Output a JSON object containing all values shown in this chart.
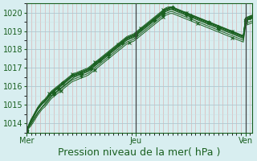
{
  "title": "",
  "xlabel": "Pression niveau de la mer( hPa )",
  "ylabel": "",
  "bg_color": "#d8eef0",
  "grid_color_major": "#b0c8d0",
  "grid_color_minor": "#c8dde2",
  "line_color": "#1a6020",
  "marker_color": "#1a6020",
  "vline_color": "#555555",
  "ylim": [
    1013.5,
    1020.5
  ],
  "yticks": [
    1014,
    1015,
    1016,
    1017,
    1018,
    1019,
    1020
  ],
  "xlabel_fontsize": 9,
  "ytick_fontsize": 7,
  "xtick_fontsize": 7,
  "day_labels": [
    "Mer",
    "Jeu",
    "Ven"
  ],
  "day_positions": [
    0,
    48,
    96
  ],
  "total_points": 100,
  "series": [
    {
      "y": [
        1013.6,
        1013.8,
        1014.0,
        1014.2,
        1014.4,
        1014.6,
        1014.75,
        1014.9,
        1015.05,
        1015.2,
        1015.35,
        1015.5,
        1015.6,
        1015.7,
        1015.8,
        1015.9,
        1016.0,
        1016.1,
        1016.2,
        1016.3,
        1016.4,
        1016.5,
        1016.55,
        1016.6,
        1016.65,
        1016.7,
        1016.75,
        1016.8,
        1016.9,
        1017.0,
        1017.1,
        1017.2,
        1017.3,
        1017.4,
        1017.5,
        1017.6,
        1017.7,
        1017.8,
        1017.9,
        1018.0,
        1018.1,
        1018.2,
        1018.3,
        1018.4,
        1018.5,
        1018.55,
        1018.6,
        1018.65,
        1018.75,
        1018.85,
        1018.95,
        1019.05,
        1019.15,
        1019.25,
        1019.35,
        1019.45,
        1019.55,
        1019.65,
        1019.75,
        1019.85,
        1019.95,
        1020.05,
        1020.1,
        1020.15,
        1020.15,
        1020.1,
        1020.05,
        1020.0,
        1019.95,
        1019.9,
        1019.85,
        1019.8,
        1019.75,
        1019.7,
        1019.65,
        1019.6,
        1019.55,
        1019.5,
        1019.45,
        1019.4,
        1019.35,
        1019.3,
        1019.25,
        1019.2,
        1019.15,
        1019.1,
        1019.05,
        1019.0,
        1018.95,
        1018.9,
        1018.85,
        1018.8,
        1018.75,
        1018.7,
        1018.65,
        1018.6,
        1019.55,
        1019.6,
        1019.65,
        1019.7
      ],
      "marker": "D",
      "markersize": 2.5,
      "markevery": 12,
      "lw": 0.8
    },
    {
      "y": [
        1013.6,
        1013.85,
        1014.1,
        1014.3,
        1014.55,
        1014.75,
        1014.9,
        1015.05,
        1015.15,
        1015.3,
        1015.45,
        1015.6,
        1015.7,
        1015.8,
        1015.9,
        1016.0,
        1016.1,
        1016.2,
        1016.3,
        1016.4,
        1016.5,
        1016.55,
        1016.6,
        1016.65,
        1016.7,
        1016.75,
        1016.8,
        1016.85,
        1016.95,
        1017.05,
        1017.15,
        1017.25,
        1017.35,
        1017.45,
        1017.55,
        1017.65,
        1017.75,
        1017.85,
        1017.95,
        1018.05,
        1018.15,
        1018.25,
        1018.35,
        1018.45,
        1018.55,
        1018.6,
        1018.65,
        1018.7,
        1018.8,
        1018.9,
        1019.0,
        1019.1,
        1019.2,
        1019.3,
        1019.4,
        1019.5,
        1019.6,
        1019.7,
        1019.8,
        1019.9,
        1020.0,
        1020.1,
        1020.15,
        1020.2,
        1020.2,
        1020.15,
        1020.1,
        1020.05,
        1020.0,
        1019.95,
        1019.9,
        1019.85,
        1019.8,
        1019.75,
        1019.7,
        1019.65,
        1019.6,
        1019.55,
        1019.5,
        1019.45,
        1019.4,
        1019.35,
        1019.3,
        1019.25,
        1019.2,
        1019.15,
        1019.1,
        1019.05,
        1019.0,
        1018.95,
        1018.9,
        1018.85,
        1018.8,
        1018.75,
        1018.7,
        1018.65,
        1019.6,
        1019.65,
        1019.7,
        1019.75
      ],
      "marker": "D",
      "markersize": 2.5,
      "markevery": 14,
      "lw": 0.8
    },
    {
      "y": [
        1013.6,
        1013.9,
        1014.15,
        1014.35,
        1014.6,
        1014.8,
        1014.95,
        1015.1,
        1015.2,
        1015.35,
        1015.5,
        1015.65,
        1015.75,
        1015.85,
        1015.95,
        1016.05,
        1016.15,
        1016.25,
        1016.35,
        1016.45,
        1016.55,
        1016.6,
        1016.65,
        1016.7,
        1016.75,
        1016.8,
        1016.85,
        1016.9,
        1017.0,
        1017.1,
        1017.2,
        1017.3,
        1017.4,
        1017.5,
        1017.6,
        1017.7,
        1017.8,
        1017.9,
        1018.0,
        1018.1,
        1018.2,
        1018.3,
        1018.4,
        1018.5,
        1018.6,
        1018.65,
        1018.7,
        1018.75,
        1018.85,
        1018.95,
        1019.05,
        1019.15,
        1019.25,
        1019.35,
        1019.45,
        1019.55,
        1019.65,
        1019.75,
        1019.85,
        1019.95,
        1020.05,
        1020.15,
        1020.2,
        1020.25,
        1020.25,
        1020.2,
        1020.15,
        1020.1,
        1020.05,
        1020.0,
        1019.95,
        1019.9,
        1019.85,
        1019.8,
        1019.75,
        1019.7,
        1019.65,
        1019.6,
        1019.55,
        1019.5,
        1019.45,
        1019.4,
        1019.35,
        1019.3,
        1019.25,
        1019.2,
        1019.15,
        1019.1,
        1019.05,
        1019.0,
        1018.95,
        1018.9,
        1018.85,
        1018.8,
        1018.75,
        1018.7,
        1019.65,
        1019.7,
        1019.75,
        1019.8
      ],
      "marker": "^",
      "markersize": 3.0,
      "markevery": 12,
      "lw": 0.8
    },
    {
      "y": [
        1013.6,
        1013.9,
        1014.2,
        1014.4,
        1014.65,
        1014.85,
        1015.0,
        1015.15,
        1015.25,
        1015.4,
        1015.55,
        1015.7,
        1015.8,
        1015.9,
        1016.0,
        1016.1,
        1016.2,
        1016.3,
        1016.4,
        1016.5,
        1016.6,
        1016.65,
        1016.7,
        1016.75,
        1016.8,
        1016.85,
        1016.9,
        1016.95,
        1017.05,
        1017.15,
        1017.25,
        1017.35,
        1017.45,
        1017.55,
        1017.65,
        1017.75,
        1017.85,
        1017.95,
        1018.05,
        1018.15,
        1018.25,
        1018.35,
        1018.45,
        1018.55,
        1018.65,
        1018.7,
        1018.75,
        1018.8,
        1018.9,
        1019.0,
        1019.1,
        1019.2,
        1019.3,
        1019.4,
        1019.5,
        1019.6,
        1019.7,
        1019.8,
        1019.9,
        1020.0,
        1020.1,
        1020.2,
        1020.25,
        1020.3,
        1020.3,
        1020.25,
        1020.2,
        1020.15,
        1020.1,
        1020.05,
        1020.0,
        1019.95,
        1019.9,
        1019.85,
        1019.8,
        1019.75,
        1019.7,
        1019.65,
        1019.6,
        1019.55,
        1019.5,
        1019.45,
        1019.4,
        1019.35,
        1019.3,
        1019.25,
        1019.2,
        1019.15,
        1019.1,
        1019.05,
        1019.0,
        1018.95,
        1018.9,
        1018.85,
        1018.8,
        1018.75,
        1019.7,
        1019.75,
        1019.8,
        1019.85
      ],
      "marker": "+",
      "markersize": 3.5,
      "markevery": 10,
      "lw": 0.7
    },
    {
      "y": [
        1013.6,
        1013.9,
        1014.2,
        1014.42,
        1014.65,
        1014.88,
        1015.05,
        1015.2,
        1015.3,
        1015.45,
        1015.6,
        1015.75,
        1015.85,
        1015.95,
        1016.05,
        1016.15,
        1016.25,
        1016.35,
        1016.45,
        1016.55,
        1016.65,
        1016.7,
        1016.75,
        1016.8,
        1016.85,
        1016.9,
        1016.95,
        1017.0,
        1017.1,
        1017.2,
        1017.3,
        1017.4,
        1017.5,
        1017.6,
        1017.7,
        1017.8,
        1017.9,
        1018.0,
        1018.1,
        1018.2,
        1018.3,
        1018.4,
        1018.5,
        1018.6,
        1018.7,
        1018.75,
        1018.8,
        1018.85,
        1018.95,
        1019.05,
        1019.15,
        1019.25,
        1019.35,
        1019.45,
        1019.55,
        1019.65,
        1019.75,
        1019.85,
        1019.95,
        1020.05,
        1020.15,
        1020.25,
        1020.3,
        1020.3,
        1020.28,
        1020.22,
        1020.17,
        1020.12,
        1020.07,
        1020.02,
        1019.97,
        1019.92,
        1019.87,
        1019.82,
        1019.77,
        1019.72,
        1019.67,
        1019.62,
        1019.57,
        1019.52,
        1019.47,
        1019.42,
        1019.37,
        1019.32,
        1019.27,
        1019.22,
        1019.17,
        1019.12,
        1019.07,
        1019.02,
        1018.97,
        1018.92,
        1018.87,
        1018.82,
        1018.77,
        1018.72,
        1019.72,
        1019.77,
        1019.82,
        1019.87
      ],
      "marker": "x",
      "markersize": 3.0,
      "markevery": 10,
      "lw": 0.7
    },
    {
      "y": [
        1013.6,
        1013.85,
        1014.1,
        1014.32,
        1014.55,
        1014.78,
        1014.95,
        1015.1,
        1015.2,
        1015.35,
        1015.52,
        1015.67,
        1015.77,
        1015.87,
        1015.97,
        1016.07,
        1016.17,
        1016.27,
        1016.37,
        1016.47,
        1016.57,
        1016.62,
        1016.67,
        1016.72,
        1016.77,
        1016.82,
        1016.87,
        1016.92,
        1017.02,
        1017.12,
        1017.22,
        1017.32,
        1017.42,
        1017.52,
        1017.62,
        1017.72,
        1017.82,
        1017.92,
        1018.02,
        1018.12,
        1018.22,
        1018.32,
        1018.42,
        1018.52,
        1018.62,
        1018.67,
        1018.72,
        1018.77,
        1018.87,
        1018.97,
        1019.07,
        1019.17,
        1019.27,
        1019.37,
        1019.47,
        1019.57,
        1019.67,
        1019.77,
        1019.87,
        1019.97,
        1020.07,
        1020.17,
        1020.22,
        1020.27,
        1020.27,
        1020.22,
        1020.17,
        1020.12,
        1020.07,
        1020.02,
        1019.97,
        1019.92,
        1019.87,
        1019.82,
        1019.77,
        1019.72,
        1019.67,
        1019.62,
        1019.57,
        1019.52,
        1019.47,
        1019.42,
        1019.37,
        1019.32,
        1019.27,
        1019.22,
        1019.17,
        1019.12,
        1019.07,
        1019.02,
        1018.97,
        1018.92,
        1018.87,
        1018.82,
        1018.77,
        1018.72,
        1019.62,
        1019.67,
        1019.72,
        1019.77
      ],
      "marker": "D",
      "markersize": 2.5,
      "markevery": 16,
      "lw": 0.7
    },
    {
      "y": [
        1013.6,
        1013.78,
        1013.95,
        1014.15,
        1014.35,
        1014.55,
        1014.72,
        1014.88,
        1014.98,
        1015.13,
        1015.3,
        1015.45,
        1015.55,
        1015.65,
        1015.75,
        1015.85,
        1015.95,
        1016.05,
        1016.15,
        1016.25,
        1016.35,
        1016.4,
        1016.45,
        1016.5,
        1016.55,
        1016.6,
        1016.65,
        1016.7,
        1016.8,
        1016.9,
        1017.0,
        1017.1,
        1017.2,
        1017.3,
        1017.4,
        1017.5,
        1017.6,
        1017.7,
        1017.8,
        1017.9,
        1018.0,
        1018.1,
        1018.2,
        1018.3,
        1018.4,
        1018.45,
        1018.5,
        1018.55,
        1018.65,
        1018.75,
        1018.85,
        1018.95,
        1019.05,
        1019.15,
        1019.25,
        1019.35,
        1019.45,
        1019.55,
        1019.65,
        1019.75,
        1019.85,
        1019.95,
        1020.0,
        1020.05,
        1020.05,
        1020.0,
        1019.95,
        1019.9,
        1019.85,
        1019.8,
        1019.75,
        1019.7,
        1019.65,
        1019.6,
        1019.55,
        1019.5,
        1019.45,
        1019.4,
        1019.35,
        1019.3,
        1019.25,
        1019.2,
        1019.15,
        1019.1,
        1019.05,
        1019.0,
        1018.95,
        1018.9,
        1018.85,
        1018.8,
        1018.75,
        1018.7,
        1018.65,
        1018.6,
        1018.55,
        1018.5,
        1019.4,
        1019.45,
        1019.5,
        1019.55
      ],
      "marker": "+",
      "markersize": 3.5,
      "markevery": 12,
      "lw": 0.7
    },
    {
      "y": [
        1013.58,
        1013.72,
        1013.86,
        1014.05,
        1014.25,
        1014.45,
        1014.62,
        1014.78,
        1014.88,
        1015.03,
        1015.2,
        1015.35,
        1015.45,
        1015.55,
        1015.65,
        1015.75,
        1015.85,
        1015.95,
        1016.05,
        1016.15,
        1016.25,
        1016.3,
        1016.35,
        1016.4,
        1016.45,
        1016.5,
        1016.55,
        1016.6,
        1016.7,
        1016.8,
        1016.9,
        1017.0,
        1017.1,
        1017.2,
        1017.3,
        1017.4,
        1017.5,
        1017.6,
        1017.7,
        1017.8,
        1017.9,
        1018.0,
        1018.1,
        1018.2,
        1018.3,
        1018.35,
        1018.4,
        1018.45,
        1018.55,
        1018.65,
        1018.75,
        1018.85,
        1018.95,
        1019.05,
        1019.15,
        1019.25,
        1019.35,
        1019.45,
        1019.55,
        1019.65,
        1019.75,
        1019.85,
        1019.9,
        1019.95,
        1019.95,
        1019.9,
        1019.85,
        1019.8,
        1019.75,
        1019.7,
        1019.65,
        1019.6,
        1019.55,
        1019.5,
        1019.45,
        1019.4,
        1019.35,
        1019.3,
        1019.25,
        1019.2,
        1019.15,
        1019.1,
        1019.05,
        1019.0,
        1018.95,
        1018.9,
        1018.85,
        1018.8,
        1018.75,
        1018.7,
        1018.65,
        1018.6,
        1018.55,
        1018.5,
        1018.45,
        1018.4,
        1019.3,
        1019.35,
        1019.4,
        1019.45
      ],
      "marker": "x",
      "markersize": 3.0,
      "markevery": 15,
      "lw": 0.7
    }
  ]
}
